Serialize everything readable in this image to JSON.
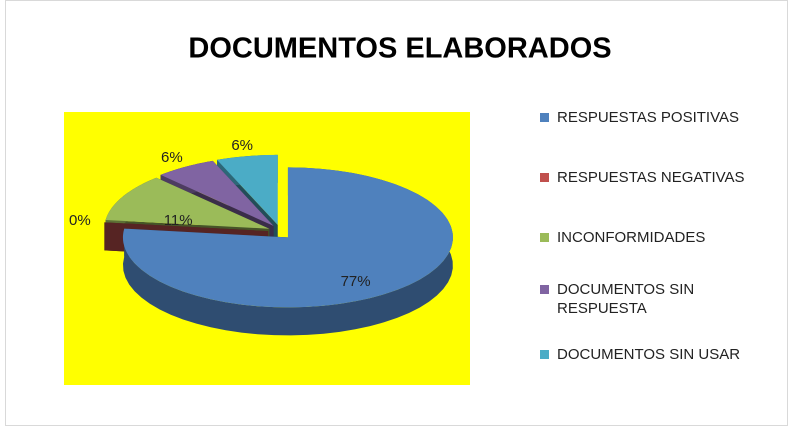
{
  "chart_data": {
    "type": "pie",
    "title": "DOCUMENTOS ELABORADOS",
    "categories": [
      "RESPUESTAS POSITIVAS",
      "RESPUESTAS NEGATIVAS",
      "INCONFORMIDADES",
      "DOCUMENTOS SIN RESPUESTA",
      "DOCUMENTOS SIN USAR"
    ],
    "values": [
      77,
      0,
      11,
      6,
      6
    ],
    "value_labels": [
      "77%",
      "0%",
      "11%",
      "6%",
      "6%"
    ],
    "colors": [
      "#4f81bd",
      "#c0504d",
      "#9bbb59",
      "#8064a2",
      "#4bacc6"
    ],
    "plot_background": "#ffff00",
    "legend": "right"
  }
}
